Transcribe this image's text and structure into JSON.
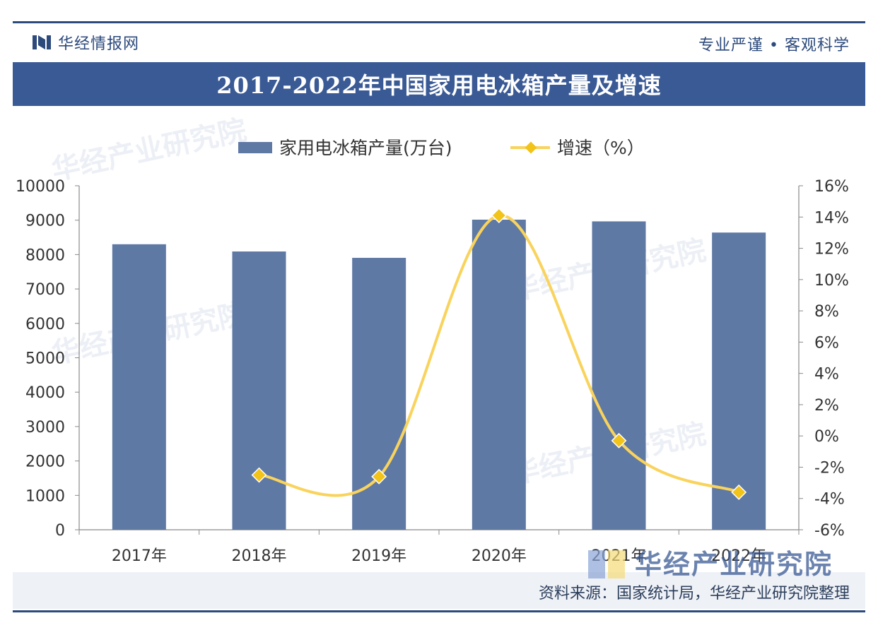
{
  "header": {
    "brand": "华经情报网",
    "slogan": "专业严谨 • 客观科学"
  },
  "title": "2017-2022年中国家用电冰箱产量及增速",
  "footer": {
    "source": "资料来源：国家统计局，华经产业研究院整理"
  },
  "watermarks": [
    "华经产业研究院",
    "华经产业研究院",
    "华经产业研究院",
    "华经产业研究院"
  ],
  "brand_mark": "华经产业研究院",
  "colors": {
    "bar": "#5f79a5",
    "line": "#f9d35c",
    "marker": "#f2c318",
    "navy": "#3a5a95"
  },
  "chart_data": {
    "type": "bar+line",
    "title": "2017-2022年中国家用电冰箱产量及增速",
    "categories": [
      "2017年",
      "2018年",
      "2019年",
      "2020年",
      "2021年",
      "2022年"
    ],
    "series": [
      {
        "name": "家用电冰箱产量(万台)",
        "type": "bar",
        "axis": "left",
        "values": [
          8300,
          8090,
          7905,
          9015,
          8965,
          8640
        ]
      },
      {
        "name": "增速（%）",
        "type": "line",
        "axis": "right",
        "values": [
          null,
          -2.5,
          -2.6,
          14.1,
          -0.3,
          -3.6
        ]
      }
    ],
    "left_axis": {
      "min": 0,
      "max": 10000,
      "step": 1000,
      "tick_labels": [
        "0",
        "1000",
        "2000",
        "3000",
        "4000",
        "5000",
        "6000",
        "7000",
        "8000",
        "9000",
        "10000"
      ]
    },
    "right_axis": {
      "min": -6,
      "max": 16,
      "step": 2,
      "tick_labels": [
        "-6%",
        "-4%",
        "-2%",
        "0%",
        "2%",
        "4%",
        "6%",
        "8%",
        "10%",
        "12%",
        "14%",
        "16%"
      ]
    },
    "legend_position": "top-center",
    "grid": false
  }
}
